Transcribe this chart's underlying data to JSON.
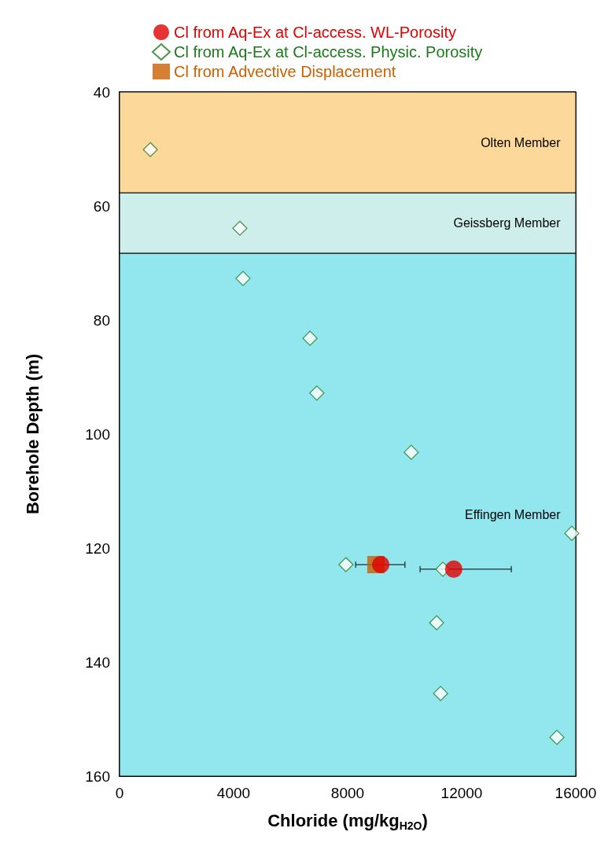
{
  "chart_data": {
    "type": "scatter",
    "xlabel": "Chloride (mg/kg$_{H2O}$)",
    "ylabel": "Borehole Depth (m)",
    "xlim": [
      0,
      16000
    ],
    "xticks": [
      0,
      4000,
      8000,
      12000,
      16000
    ],
    "ylim": [
      160,
      40
    ],
    "yticks": [
      40,
      60,
      80,
      100,
      120,
      140,
      160
    ],
    "grid": false,
    "legend": "top",
    "bands": [
      {
        "axis": "y",
        "from": 40,
        "to": 57.7,
        "label": "Olten Member",
        "color": "#fdd89b"
      },
      {
        "axis": "y",
        "from": 57.7,
        "to": 68.3,
        "label": "Geissberg Member",
        "color": "#cdeeea"
      },
      {
        "axis": "y",
        "from": 68.3,
        "to": 160,
        "label": "Effingen Member",
        "color": "#92e6ee"
      }
    ],
    "series": [
      {
        "name": "Cl from Aq-Ex at Cl-access. WL-Porosity",
        "color": "#e00000",
        "marker": "circle",
        "x": [
          9160,
          11720
        ],
        "values": [
          122.9,
          123.7
        ],
        "xerrors": [
          [
            8280,
            10010
          ],
          [
            10540,
            13740
          ]
        ]
      },
      {
        "name": "Cl from Aq-Ex at Cl-access. Physic. Porosity",
        "color": "#1a7a1a",
        "marker": "diamond",
        "x": [
          1080,
          4220,
          4330,
          6680,
          6920,
          10230,
          15860,
          7940,
          11340,
          11120,
          11260,
          15340
        ],
        "values": [
          50.1,
          63.9,
          72.7,
          83.2,
          92.8,
          103.2,
          117.4,
          122.9,
          123.7,
          133.1,
          145.5,
          153.2
        ]
      },
      {
        "name": "Cl from Advective Displacement",
        "color": "#cc5f00",
        "marker": "square",
        "x": [
          8990
        ],
        "values": [
          122.9
        ]
      }
    ]
  }
}
